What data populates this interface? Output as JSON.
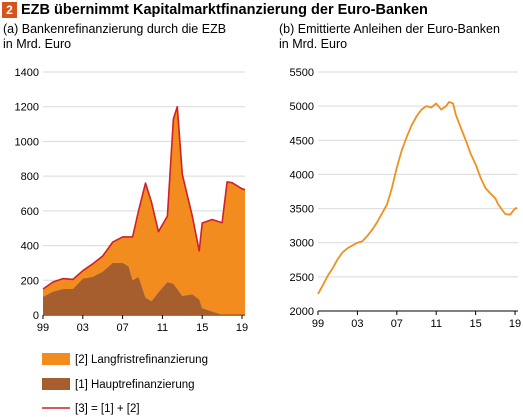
{
  "header": {
    "number": "2",
    "title": "EZB übernimmt Kapitalmarktfinanzierung der Euro-Banken"
  },
  "colors": {
    "badge": "#d4541e",
    "long_term": "#f28c1e",
    "main_refi": "#a65e2e",
    "total": "#d0202a",
    "bonds_line": "#f0901e",
    "grid": "#d9d9d9",
    "axis": "#000000"
  },
  "chart_data": [
    {
      "type": "area",
      "title": "(a) Bankenrefinanzierung durch die EZB",
      "subtitle": "in Mrd. Euro",
      "xlabel": "",
      "ylabel": "",
      "xlim": [
        1999,
        2019.3
      ],
      "ylim": [
        0,
        1400
      ],
      "x_ticks": [
        1999,
        2003,
        2007,
        2011,
        2015,
        2019
      ],
      "x_tick_labels": [
        "99",
        "03",
        "07",
        "11",
        "15",
        "19"
      ],
      "y_ticks": [
        0,
        200,
        400,
        600,
        800,
        1000,
        1200,
        1400
      ],
      "grid": "horizontal",
      "legend_position": "bottom",
      "stacking": "[3] = [1] + [2]",
      "series": [
        {
          "name": "[2] Langfristrefinanzierung",
          "type": "area",
          "x": [
            1999,
            2000,
            2001,
            2002,
            2003,
            2004,
            2005,
            2006,
            2007,
            2007.6,
            2008,
            2008.6,
            2009.3,
            2009.9,
            2010.6,
            2011.5,
            2012.1,
            2012.5,
            2013,
            2014,
            2014.7,
            2015,
            2016,
            2017,
            2017.5,
            2018,
            2019,
            2019.3
          ],
          "values": [
            45,
            55,
            60,
            55,
            45,
            75,
            90,
            120,
            150,
            170,
            250,
            380,
            660,
            570,
            350,
            380,
            950,
            1050,
            700,
            450,
            280,
            490,
            530,
            530,
            765,
            760,
            725,
            720
          ]
        },
        {
          "name": "[1] Hauptrefinanzierung",
          "type": "area",
          "x": [
            1999,
            2000,
            2001,
            2002,
            2003,
            2004,
            2005,
            2006,
            2007,
            2007.6,
            2008,
            2008.6,
            2009.3,
            2009.9,
            2010.6,
            2011.5,
            2012.1,
            2012.5,
            2013,
            2014,
            2014.7,
            2015,
            2016,
            2017,
            2017.5,
            2018,
            2019,
            2019.3
          ],
          "values": [
            105,
            135,
            150,
            150,
            210,
            220,
            250,
            300,
            300,
            280,
            200,
            220,
            100,
            80,
            130,
            190,
            180,
            150,
            110,
            120,
            90,
            40,
            20,
            2,
            2,
            2,
            2,
            2
          ]
        },
        {
          "name": "[3] = [1] + [2]",
          "type": "line",
          "x": [
            1999,
            2000,
            2001,
            2002,
            2003,
            2004,
            2005,
            2006,
            2007,
            2007.6,
            2008,
            2008.6,
            2009.3,
            2009.9,
            2010.6,
            2011.5,
            2012.1,
            2012.5,
            2013,
            2014,
            2014.7,
            2015,
            2016,
            2017,
            2017.5,
            2018,
            2019,
            2019.3
          ],
          "values": [
            150,
            190,
            210,
            205,
            255,
            295,
            340,
            420,
            450,
            450,
            450,
            600,
            760,
            650,
            480,
            570,
            1130,
            1200,
            810,
            570,
            370,
            530,
            550,
            532,
            767,
            762,
            727,
            722
          ]
        }
      ]
    },
    {
      "type": "line",
      "title": "(b) Emittierte Anleihen der Euro-Banken",
      "subtitle": "in Mrd. Euro",
      "xlabel": "",
      "ylabel": "",
      "xlim": [
        1999,
        2019.3
      ],
      "ylim": [
        2000,
        5500
      ],
      "x_ticks": [
        1999,
        2003,
        2007,
        2011,
        2015,
        2019
      ],
      "x_tick_labels": [
        "99",
        "03",
        "07",
        "11",
        "15",
        "19"
      ],
      "y_ticks": [
        2000,
        2500,
        3000,
        3500,
        4000,
        4500,
        5000,
        5500
      ],
      "grid": "horizontal",
      "series": [
        {
          "x": [
            1999,
            1999.5,
            2000,
            2000.5,
            2001,
            2001.5,
            2002,
            2002.5,
            2003,
            2003.5,
            2004,
            2004.5,
            2005,
            2005.5,
            2006,
            2006.5,
            2007,
            2007.5,
            2008,
            2008.5,
            2009,
            2009.5,
            2010,
            2010.5,
            2011,
            2011.5,
            2012,
            2012.3,
            2012.7,
            2013,
            2013.5,
            2014,
            2014.5,
            2015,
            2015.5,
            2016,
            2016.5,
            2017,
            2017.3,
            2017.7,
            2018,
            2018.5,
            2019,
            2019.2
          ],
          "values": [
            2250,
            2380,
            2520,
            2630,
            2760,
            2860,
            2920,
            2960,
            3000,
            3020,
            3100,
            3190,
            3300,
            3430,
            3560,
            3800,
            4100,
            4350,
            4550,
            4720,
            4850,
            4950,
            5000,
            4980,
            5040,
            4950,
            5000,
            5060,
            5040,
            4870,
            4680,
            4500,
            4300,
            4150,
            3950,
            3800,
            3720,
            3650,
            3560,
            3480,
            3420,
            3410,
            3500,
            3510
          ]
        }
      ]
    }
  ]
}
